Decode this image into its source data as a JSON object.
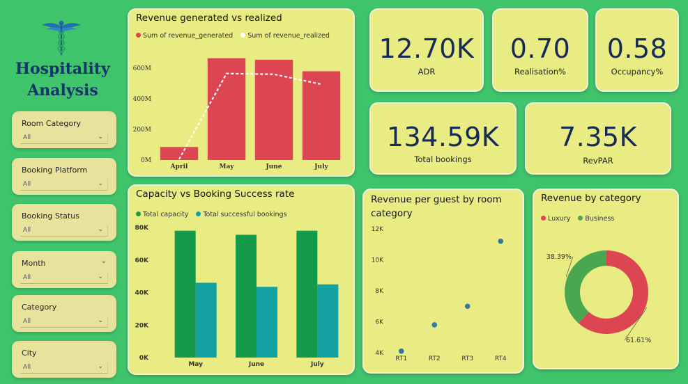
{
  "brand": {
    "line1": "Hospitality",
    "line2": "Analysis",
    "logo_icon": "caduceus-icon"
  },
  "slicers": [
    {
      "label": "Room Category",
      "value": "All"
    },
    {
      "label": "Booking Platform",
      "value": "All"
    },
    {
      "label": "Booking Status",
      "value": "All"
    },
    {
      "label": "Month",
      "value": "All"
    },
    {
      "label": "Category",
      "value": "All"
    },
    {
      "label": "City",
      "value": "All"
    }
  ],
  "kpis": {
    "adr": {
      "value": "12.70K",
      "label": "ADR"
    },
    "realisation": {
      "value": "0.70",
      "label": "Realisation%"
    },
    "occupancy": {
      "value": "0.58",
      "label": "Occupancy%"
    },
    "bookings": {
      "value": "134.59K",
      "label": "Total bookings"
    },
    "revpar": {
      "value": "7.35K",
      "label": "RevPAR"
    }
  },
  "colors": {
    "background": "#3fc46c",
    "card": "#e8ec82",
    "red": "#dc4652",
    "green": "#159a4b",
    "teal": "#14a1a2",
    "blue": "#2e7aa6",
    "donut_green": "#4aa64f"
  },
  "chart_data": [
    {
      "type": "bar",
      "title": "Revenue generated vs realized",
      "categories": [
        "April",
        "May",
        "June",
        "July"
      ],
      "series": [
        {
          "name": "Sum of revenue_generated",
          "type": "bar",
          "color": "#dc4652",
          "values": [
            85,
            665,
            655,
            580
          ]
        },
        {
          "name": "Sum of revenue_realized",
          "type": "line",
          "color": "#ffffff",
          "values": [
            5,
            565,
            560,
            495
          ]
        }
      ],
      "ylim": [
        0,
        700
      ],
      "yticks": [
        0,
        200,
        400,
        600
      ],
      "ytick_labels": [
        "0M",
        "200M",
        "400M",
        "600M"
      ],
      "legend": "top-left"
    },
    {
      "type": "bar",
      "title": "Capacity vs Booking Success rate",
      "categories": [
        "May",
        "June",
        "July"
      ],
      "series": [
        {
          "name": "Total capacity",
          "color": "#159a4b",
          "values": [
            78000,
            75500,
            78000
          ]
        },
        {
          "name": "Total successful bookings",
          "color": "#14a1a2",
          "values": [
            46000,
            43500,
            45000
          ]
        }
      ],
      "ylim": [
        0,
        80000
      ],
      "yticks": [
        0,
        20000,
        40000,
        60000,
        80000
      ],
      "ytick_labels": [
        "0K",
        "20K",
        "40K",
        "60K",
        "80K"
      ],
      "legend": "top-left"
    },
    {
      "type": "scatter",
      "title": "Revenue per guest by room category",
      "categories": [
        "RT1",
        "RT2",
        "RT3",
        "RT4"
      ],
      "values": [
        4100,
        5800,
        7000,
        11200
      ],
      "color": "#2e7aa6",
      "ylim": [
        4000,
        12000
      ],
      "yticks": [
        4000,
        6000,
        8000,
        10000,
        12000
      ],
      "ytick_labels": [
        "4K",
        "6K",
        "8K",
        "10K",
        "12K"
      ]
    },
    {
      "type": "pie",
      "title": "Revenue by category",
      "slices": [
        {
          "name": "Luxury",
          "value": 61.61,
          "label": "61.61%",
          "color": "#dc4652"
        },
        {
          "name": "Business",
          "value": 38.39,
          "label": "38.39%",
          "color": "#4aa64f"
        }
      ],
      "legend": "top-left"
    }
  ]
}
